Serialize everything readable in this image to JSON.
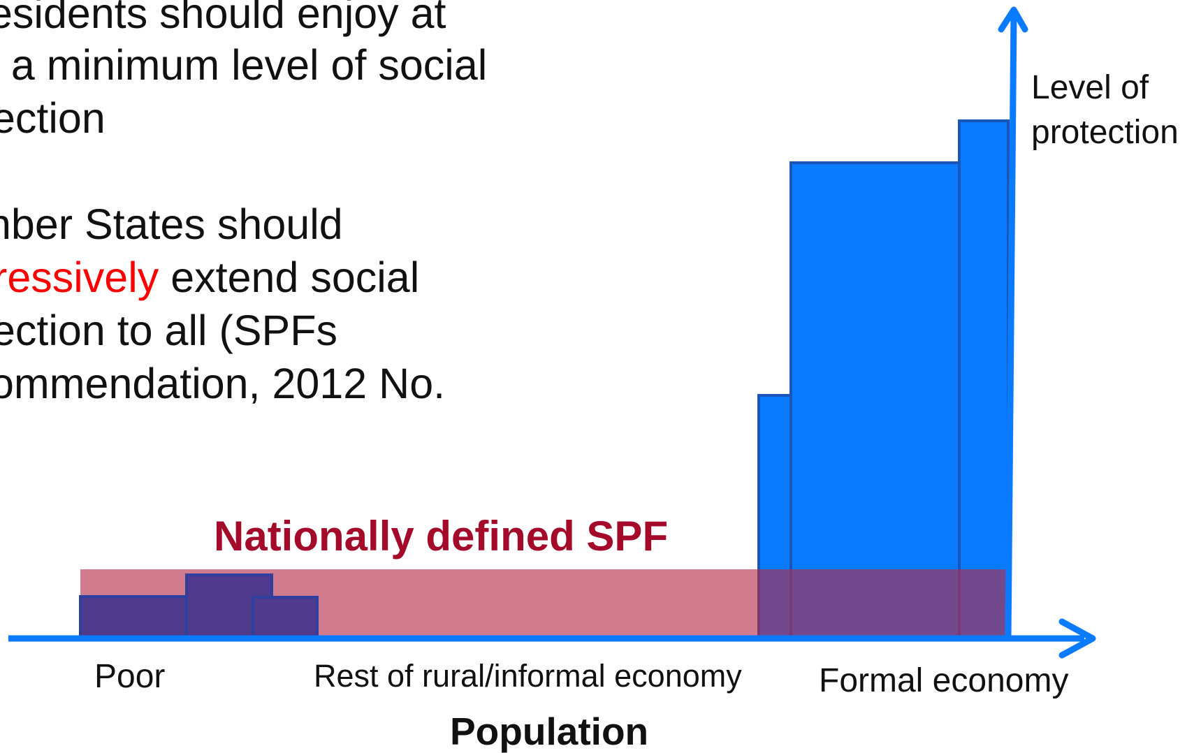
{
  "text_block": {
    "lines": [
      "esidents should enjoy at",
      "t a minimum level of social",
      "ection",
      "nber States should",
      "extend social",
      "ection to all (SPFs",
      "ommendation, 2012 No."
    ],
    "highlight": "ressively"
  },
  "diagram": {
    "y_axis_label_line1": "Level of",
    "y_axis_label_line2": "protection",
    "x_axis_title": "Population",
    "band_label": "Nationally defined SPF",
    "segments": [
      "Poor",
      "Rest of rural/informal economy",
      "Formal economy"
    ]
  },
  "colors": {
    "axis": "#0a7bff",
    "bar_fill": "#0a7bff",
    "bar_stroke": "#1a56b8",
    "spf_band": "#c34a60",
    "spf_label": "#a40a2a",
    "highlight": "#ff0000",
    "poor_bars": "#503a8c"
  }
}
